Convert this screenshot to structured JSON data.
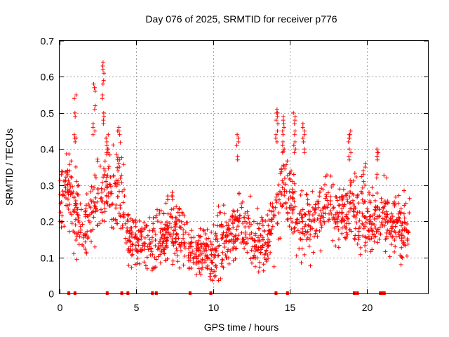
{
  "chart_data": {
    "type": "scatter",
    "title": "Day 076 of 2025, SRMTID for receiver p776",
    "xlabel": "GPS time / hours",
    "ylabel": "SRMTID / TECUs",
    "xlim": [
      0,
      24
    ],
    "ylim": [
      0,
      0.7
    ],
    "xticks": [
      0,
      5,
      10,
      15,
      20
    ],
    "yticks": [
      0,
      0.1,
      0.2,
      0.3,
      0.4,
      0.5,
      0.6,
      0.7
    ],
    "xtick_labels": [
      "0",
      "5",
      "10",
      "15",
      "20"
    ],
    "ytick_labels": [
      "0",
      "0.1",
      "0.2",
      "0.3",
      "0.4",
      "0.5",
      "0.6",
      "0.7"
    ],
    "grid": true,
    "marker": "+",
    "color": "#ff0000",
    "trend": {
      "x": [
        0,
        0.5,
        1,
        1.5,
        2,
        2.5,
        3,
        3.5,
        4,
        4.5,
        5,
        5.5,
        6,
        6.5,
        7,
        7.5,
        8,
        8.5,
        9,
        9.5,
        10,
        10.5,
        11,
        11.5,
        12,
        12.5,
        13,
        13.5,
        14,
        14.5,
        15,
        15.5,
        16,
        16.5,
        17,
        17.5,
        18,
        18.5,
        19,
        19.5,
        20,
        20.5,
        21,
        21.5,
        22,
        22.5,
        22.8
      ],
      "y": [
        0.25,
        0.3,
        0.22,
        0.17,
        0.2,
        0.28,
        0.3,
        0.27,
        0.3,
        0.16,
        0.15,
        0.14,
        0.13,
        0.14,
        0.16,
        0.17,
        0.18,
        0.12,
        0.12,
        0.11,
        0.1,
        0.15,
        0.16,
        0.18,
        0.2,
        0.15,
        0.14,
        0.13,
        0.22,
        0.28,
        0.3,
        0.2,
        0.18,
        0.2,
        0.22,
        0.25,
        0.22,
        0.2,
        0.26,
        0.23,
        0.2,
        0.2,
        0.22,
        0.2,
        0.19,
        0.17,
        0.2
      ]
    },
    "outlier_clusters": [
      {
        "x": 1.0,
        "y": [
          0.55,
          0.5,
          0.44,
          0.43
        ]
      },
      {
        "x": 2.25,
        "y": [
          0.58,
          0.57,
          0.52,
          0.47,
          0.45
        ]
      },
      {
        "x": 2.85,
        "y": [
          0.64,
          0.62,
          0.59,
          0.55,
          0.5,
          0.48
        ]
      },
      {
        "x": 3.1,
        "y": [
          0.44,
          0.42,
          0.4,
          0.4
        ]
      },
      {
        "x": 3.85,
        "y": [
          0.46,
          0.45,
          0.37,
          0.35
        ]
      },
      {
        "x": 7.0,
        "y": [
          0.27,
          0.26
        ]
      },
      {
        "x": 7.3,
        "y": [
          0.28,
          0.27
        ]
      },
      {
        "x": 11.6,
        "y": [
          0.44,
          0.42,
          0.38
        ]
      },
      {
        "x": 14.15,
        "y": [
          0.51,
          0.5,
          0.48,
          0.45,
          0.43
        ]
      },
      {
        "x": 14.6,
        "y": [
          0.49,
          0.47,
          0.45,
          0.42,
          0.4
        ]
      },
      {
        "x": 15.3,
        "y": [
          0.5,
          0.48,
          0.45,
          0.42,
          0.4
        ]
      },
      {
        "x": 15.9,
        "y": [
          0.47,
          0.45,
          0.43,
          0.4
        ]
      },
      {
        "x": 18.9,
        "y": [
          0.45,
          0.44,
          0.43,
          0.4,
          0.38
        ]
      },
      {
        "x": 20.7,
        "y": [
          0.4,
          0.39,
          0.38,
          0.33
        ]
      },
      {
        "x": 19.85,
        "y": [
          0.36,
          0.34,
          0.31
        ]
      }
    ],
    "edge_marks_x": [
      0.6,
      1.0,
      3.1,
      4.05,
      4.45,
      6.05,
      6.3,
      8.5,
      9.85,
      14.1,
      14.85,
      19.2,
      19.4,
      20.9,
      21.05,
      21.15
    ],
    "data_x_range": [
      0,
      22.8
    ]
  }
}
